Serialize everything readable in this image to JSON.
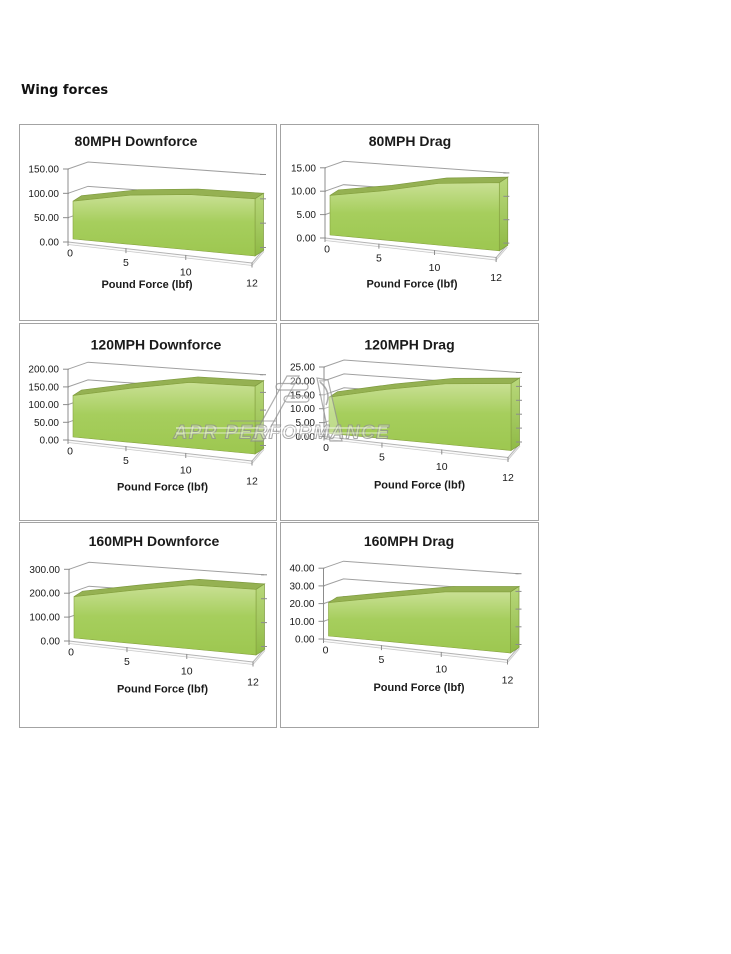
{
  "page": {
    "title": "Wing forces",
    "background": "#ffffff"
  },
  "watermark": {
    "text": "APR PERFORMANCE",
    "logo_icon": "apr-logo"
  },
  "chart_data": [
    {
      "type": "area",
      "title": "80MPH Downforce",
      "x": [
        0,
        5,
        10,
        12
      ],
      "values": [
        81,
        100,
        107,
        105
      ],
      "xlabel": "Pound Force (lbf)",
      "xtick_labels": [
        "0",
        "5",
        "10",
        "12"
      ],
      "ytick_labels": [
        "0.00",
        "50.00",
        "100.00",
        "150.00"
      ],
      "ylim": [
        0,
        150
      ]
    },
    {
      "type": "area",
      "title": "80MPH Drag",
      "x": [
        0,
        5,
        10,
        12
      ],
      "values": [
        8.8,
        10.4,
        12.4,
        13
      ],
      "xlabel": "Pound Force (lbf)",
      "xtick_labels": [
        "0",
        "5",
        "10",
        "12"
      ],
      "ytick_labels": [
        "0.00",
        "5.00",
        "10.00",
        "15.00"
      ],
      "ylim": [
        0,
        15
      ]
    },
    {
      "type": "area",
      "title": "120MPH Downforce",
      "x": [
        0,
        5,
        10,
        12
      ],
      "values": [
        122,
        151,
        174,
        171
      ],
      "xlabel": "Pound Force (lbf)",
      "xtick_labels": [
        "0",
        "5",
        "10",
        "12"
      ],
      "ytick_labels": [
        "0.00",
        "50.00",
        "100.00",
        "150.00",
        "200.00"
      ],
      "ylim": [
        0,
        200
      ]
    },
    {
      "type": "area",
      "title": "120MPH Drag",
      "x": [
        0,
        5,
        10,
        12
      ],
      "values": [
        13.6,
        17.6,
        20.5,
        21.5
      ],
      "xlabel": "Pound Force (lbf)",
      "xtick_labels": [
        "0",
        "5",
        "10",
        "12"
      ],
      "ytick_labels": [
        "0.00",
        "5.00",
        "10.00",
        "15.00",
        "20.00",
        "25.00"
      ],
      "ylim": [
        0,
        25
      ]
    },
    {
      "type": "area",
      "title": "160MPH Downforce",
      "x": [
        0,
        5,
        10,
        12
      ],
      "values": [
        180,
        219,
        252,
        245
      ],
      "xlabel": "Pound Force (lbf)",
      "xtick_labels": [
        "0",
        "5",
        "10",
        "12"
      ],
      "ytick_labels": [
        "0.00",
        "100.00",
        "200.00",
        "300.00"
      ],
      "ylim": [
        0,
        300
      ]
    },
    {
      "type": "area",
      "title": "160MPH Drag",
      "x": [
        0,
        5,
        10,
        12
      ],
      "values": [
        19.6,
        24.7,
        29.2,
        30.8
      ],
      "xlabel": "Pound Force (lbf)",
      "xtick_labels": [
        "0",
        "5",
        "10",
        "12"
      ],
      "ytick_labels": [
        "0.00",
        "10.00",
        "20.00",
        "30.00",
        "40.00"
      ],
      "ylim": [
        0,
        40
      ]
    }
  ],
  "colors": {
    "area_light": "#c9e094",
    "area_mid": "#a6ce5d",
    "area_dark": "#9dc750",
    "area_top_face": "#95b152",
    "area_side_light": "#b9d87c",
    "area_side_dark": "#8fba45",
    "gridline": "#a0a0a0",
    "axis": "#8c8c8c",
    "cell_border": "#a3a3a3",
    "watermark_outline": "#8f8f8f"
  }
}
